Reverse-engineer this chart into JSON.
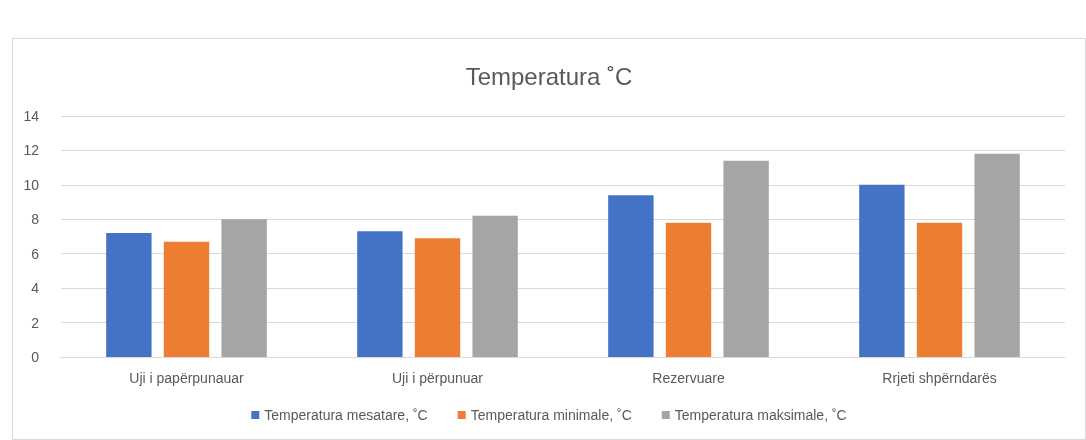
{
  "chart_data": {
    "type": "bar",
    "title": "Temperatura ˚C",
    "categories": [
      "Uji i papërpunauar",
      "Uji i përpunuar",
      "Rezervuare",
      "Rrjeti shpërndarës"
    ],
    "series": [
      {
        "name": "Temperatura mesatare, ˚C",
        "color": "#4472c4",
        "values": [
          7.2,
          7.3,
          9.4,
          10.0
        ]
      },
      {
        "name": "Temperatura minimale, ˚C",
        "color": "#ed7d31",
        "values": [
          6.7,
          6.9,
          7.8,
          7.8
        ]
      },
      {
        "name": "Temperatura maksimale, ˚C",
        "color": "#a5a5a5",
        "values": [
          8.0,
          8.2,
          11.4,
          11.8
        ]
      }
    ],
    "ylim": [
      0,
      14
    ],
    "yticks": [
      0,
      2,
      4,
      6,
      8,
      10,
      12,
      14
    ],
    "grid": "y",
    "legend": "bottom"
  }
}
